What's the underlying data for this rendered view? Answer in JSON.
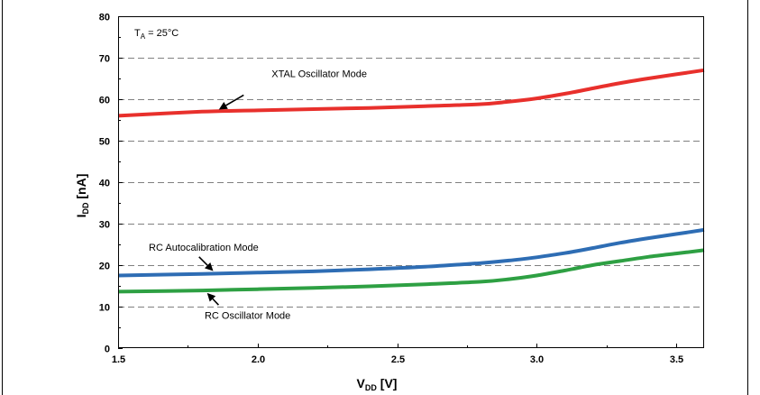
{
  "chart_data": {
    "type": "line",
    "xlabel": {
      "main": "V",
      "sub": "DD",
      "unit": " [V]"
    },
    "ylabel": {
      "main": "I",
      "sub": "DD",
      "unit": " [nA]"
    },
    "xlim": [
      1.5,
      3.6
    ],
    "ylim": [
      0,
      80
    ],
    "x_ticks": [
      1.5,
      2.0,
      2.5,
      3.0,
      3.5
    ],
    "x_tick_labels": [
      "1.5",
      "2.0",
      "2.5",
      "3.0",
      "3.5"
    ],
    "y_ticks": [
      0,
      10,
      20,
      30,
      40,
      50,
      60,
      70,
      80
    ],
    "y_tick_labels": [
      "0",
      "10",
      "20",
      "30",
      "40",
      "50",
      "60",
      "70",
      "80"
    ],
    "grid": "horizontal-dashed",
    "condition": {
      "main": "T",
      "sub": "A",
      "rest": " = 25°C"
    },
    "series": [
      {
        "name": "XTAL Oscillator Mode",
        "color": "#e8302c",
        "x": [
          1.5,
          1.8,
          2.0,
          2.2,
          2.4,
          2.6,
          2.8,
          2.9,
          3.0,
          3.1,
          3.2,
          3.3,
          3.4,
          3.5,
          3.6
        ],
        "y": [
          56.0,
          57.0,
          57.3,
          57.6,
          57.9,
          58.3,
          58.8,
          59.4,
          60.2,
          61.3,
          62.6,
          63.9,
          65.0,
          66.0,
          67.0
        ]
      },
      {
        "name": "RC Autocalibration Mode",
        "color": "#2e6db4",
        "x": [
          1.5,
          1.8,
          2.0,
          2.2,
          2.4,
          2.6,
          2.8,
          2.9,
          3.0,
          3.1,
          3.2,
          3.3,
          3.4,
          3.5,
          3.6
        ],
        "y": [
          17.5,
          17.9,
          18.2,
          18.5,
          19.0,
          19.6,
          20.5,
          21.1,
          21.9,
          22.9,
          24.1,
          25.4,
          26.5,
          27.5,
          28.5
        ]
      },
      {
        "name": "RC Oscillator Mode",
        "color": "#2ea043",
        "x": [
          1.5,
          1.8,
          2.0,
          2.2,
          2.4,
          2.6,
          2.8,
          2.9,
          3.0,
          3.1,
          3.2,
          3.3,
          3.4,
          3.5,
          3.6
        ],
        "y": [
          13.6,
          13.9,
          14.2,
          14.5,
          14.9,
          15.4,
          16.0,
          16.6,
          17.5,
          18.7,
          20.0,
          21.0,
          22.0,
          22.8,
          23.6
        ]
      }
    ],
    "annotations": [
      {
        "text": "XTAL Oscillator Mode",
        "series": 0,
        "point_x": 1.85,
        "label_at": [
          2.05,
          65.3
        ],
        "arrow_from": [
          1.95,
          61.0
        ]
      },
      {
        "text": "RC Autocalibration Mode",
        "series": 1,
        "point_x": 1.85,
        "label_at": [
          1.61,
          23.5
        ],
        "arrow_from": [
          1.79,
          22.0
        ]
      },
      {
        "text": "RC Oscillator Mode",
        "series": 2,
        "point_x": 1.81,
        "label_at": [
          1.81,
          7.1
        ],
        "arrow_from": [
          1.86,
          10.4
        ]
      }
    ]
  }
}
